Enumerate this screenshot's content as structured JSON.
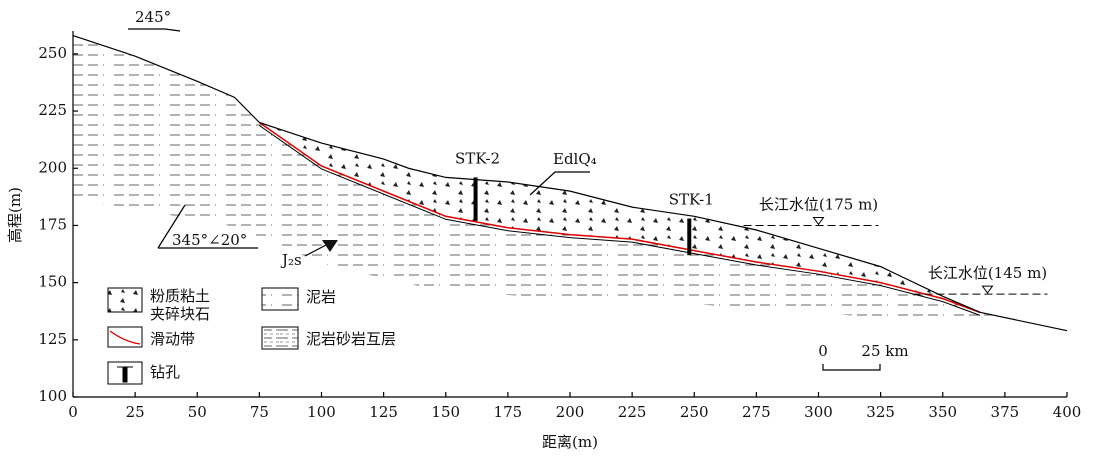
{
  "chart_data": {
    "type": "cross-section",
    "x_label": "距离(m)",
    "y_label": "高程(m)",
    "xlim": [
      0,
      400
    ],
    "ylim": [
      100,
      260
    ],
    "xticks": [
      0,
      25,
      50,
      75,
      100,
      125,
      150,
      175,
      200,
      225,
      250,
      275,
      300,
      325,
      350,
      375,
      400
    ],
    "yticks": [
      100,
      125,
      150,
      175,
      200,
      225,
      250
    ],
    "profiles": {
      "ground": {
        "x": [
          0,
          25,
          50,
          65,
          75,
          100,
          125,
          135,
          150,
          175,
          200,
          225,
          250,
          275,
          300,
          325,
          350,
          365,
          400
        ],
        "y": [
          258,
          249,
          238,
          231,
          220,
          211,
          204,
          200,
          196,
          194,
          190,
          183,
          179,
          173,
          165,
          157,
          144,
          137,
          129
        ]
      },
      "slide_zone": {
        "x": [
          75,
          100,
          125,
          150,
          175,
          200,
          225,
          250,
          275,
          300,
          325,
          350,
          365
        ],
        "y": [
          220,
          201,
          190,
          179,
          174,
          171,
          169,
          164,
          159,
          155,
          150,
          143,
          137
        ]
      }
    },
    "boreholes": [
      {
        "name": "STK-2",
        "x": 162,
        "top": 196,
        "bottom": 177
      },
      {
        "name": "STK-1",
        "x": 248,
        "top": 178,
        "bottom": 162
      }
    ],
    "water_levels": [
      {
        "label": "长江水位(175 m)",
        "value": 175,
        "x": 300
      },
      {
        "label": "长江水位(145 m)",
        "value": 145,
        "x": 368
      }
    ],
    "annotations": {
      "strike": "245°",
      "dip": "345°∠20°",
      "formation": "J₂s",
      "deposit": "EdlQ₄"
    },
    "legend": {
      "deposit": [
        "粉质粘土",
        "夹碎块石"
      ],
      "slide_zone": "滑动带",
      "borehole": "钻孔",
      "mudstone": "泥岩",
      "interbed": "泥岩砂岩互层"
    },
    "scale_bar": {
      "start": "0",
      "end": "25 km"
    }
  }
}
